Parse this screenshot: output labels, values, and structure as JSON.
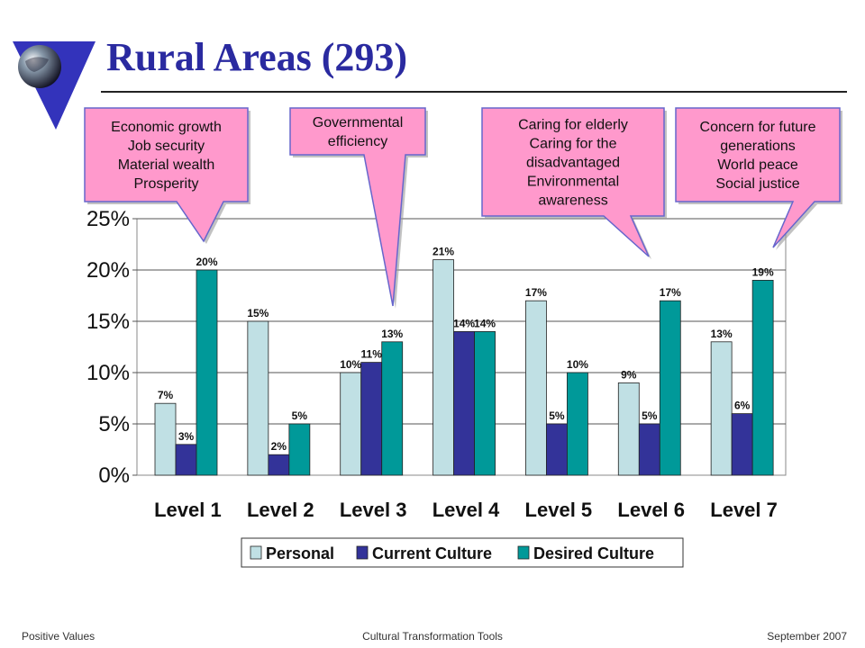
{
  "slide": {
    "title": "Rural Areas (293)",
    "colors": {
      "title": "#2a2aa0",
      "callout_fill": "#ff99cc",
      "callout_border": "#6666cc"
    }
  },
  "chart_data": {
    "type": "bar",
    "categories": [
      "Level 1",
      "Level 2",
      "Level 3",
      "Level 4",
      "Level 5",
      "Level 6",
      "Level 7"
    ],
    "series": [
      {
        "name": "Personal",
        "color": "#c0e0e4",
        "values": [
          7,
          15,
          10,
          21,
          17,
          9,
          13
        ],
        "labels": [
          "7%",
          "15%",
          "10%",
          "21%",
          "17%",
          "9%",
          "13%"
        ]
      },
      {
        "name": "Current Culture",
        "color": "#333399",
        "values": [
          3,
          2,
          11,
          14,
          5,
          5,
          6
        ],
        "labels": [
          "3%",
          "2%",
          "11%",
          "14%",
          "5%",
          "5%",
          "6%"
        ]
      },
      {
        "name": "Desired Culture",
        "color": "#009999",
        "values": [
          20,
          5,
          13,
          14,
          10,
          17,
          19
        ],
        "labels": [
          "20%",
          "5%",
          "13%",
          "14%",
          "10%",
          "17%",
          "19%"
        ]
      }
    ],
    "y_ticks": [
      "0%",
      "5%",
      "10%",
      "15%",
      "20%",
      "25%"
    ],
    "y_tick_values": [
      0,
      5,
      10,
      15,
      20,
      25
    ],
    "ylim": [
      0,
      25
    ],
    "grid": true,
    "legend_position": "bottom"
  },
  "callouts": [
    {
      "lines": [
        "Economic growth",
        "Job security",
        "Material wealth",
        "Prosperity"
      ]
    },
    {
      "lines": [
        "Governmental",
        "efficiency"
      ]
    },
    {
      "lines": [
        "Caring for elderly",
        "Caring for the",
        "disadvantaged",
        "Environmental",
        "awareness"
      ]
    },
    {
      "lines": [
        "Concern for future",
        "generations",
        "World peace",
        "Social justice"
      ]
    }
  ],
  "footer": {
    "left": "Positive Values",
    "center": "Cultural Transformation Tools",
    "right": "September 2007"
  }
}
